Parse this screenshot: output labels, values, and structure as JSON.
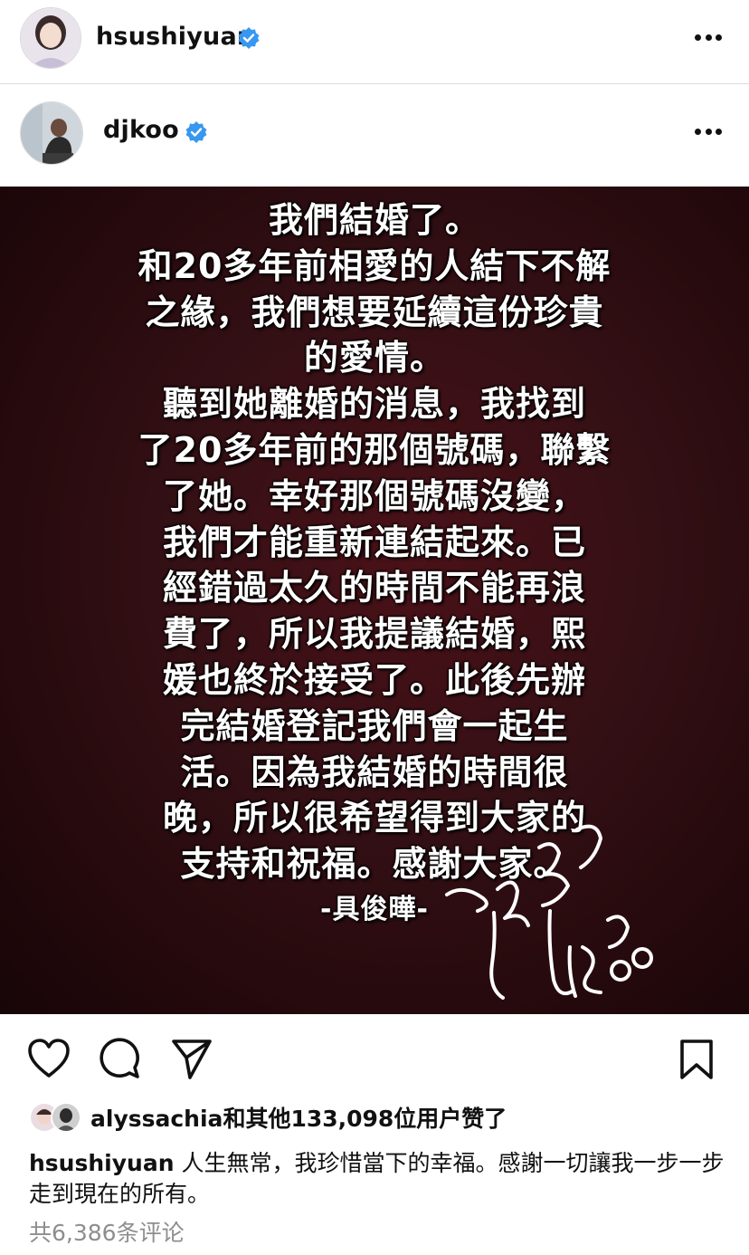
{
  "post_author": {
    "username": "hsushiyuan",
    "verified": true
  },
  "reposted_from": {
    "username": "djkoo",
    "verified": true
  },
  "post_image": {
    "lines": [
      "我們結婚了。",
      "和20多年前相愛的人結下不解",
      "之緣，我們想要延續這份珍貴",
      "的愛情。",
      "聽到她離婚的消息，我找到",
      "了20多年前的那個號碼，聯繫",
      "了她。幸好那個號碼沒變，",
      "我們才能重新連結起來。已",
      "經錯過太久的時間不能再浪",
      "費了，所以我提議結婚，熙",
      "媛也終於接受了。此後先辦",
      "完結婚登記我們會一起生",
      "活。因為我結婚的時間很",
      "晚，所以很希望得到大家的",
      "支持和祝福。感謝大家。"
    ],
    "signature_line": "-具俊曄-",
    "signature_script": "DJKOO"
  },
  "actions": {
    "like_icon": "heart-icon",
    "comment_icon": "comment-icon",
    "share_icon": "send-icon",
    "save_icon": "bookmark-icon"
  },
  "likes": {
    "username": "alyssachia",
    "text": "和其他133,098位用户赞了"
  },
  "caption": {
    "username": "hsushiyuan",
    "text": "人生無常，我珍惜當下的幸福。感謝一切讓我一步一步走到現在的所有。"
  },
  "comments_link": "共6,386条评论",
  "colors": {
    "verified": "#3897f0",
    "post_bg": "#341015",
    "muted": "#8e8e8e"
  }
}
